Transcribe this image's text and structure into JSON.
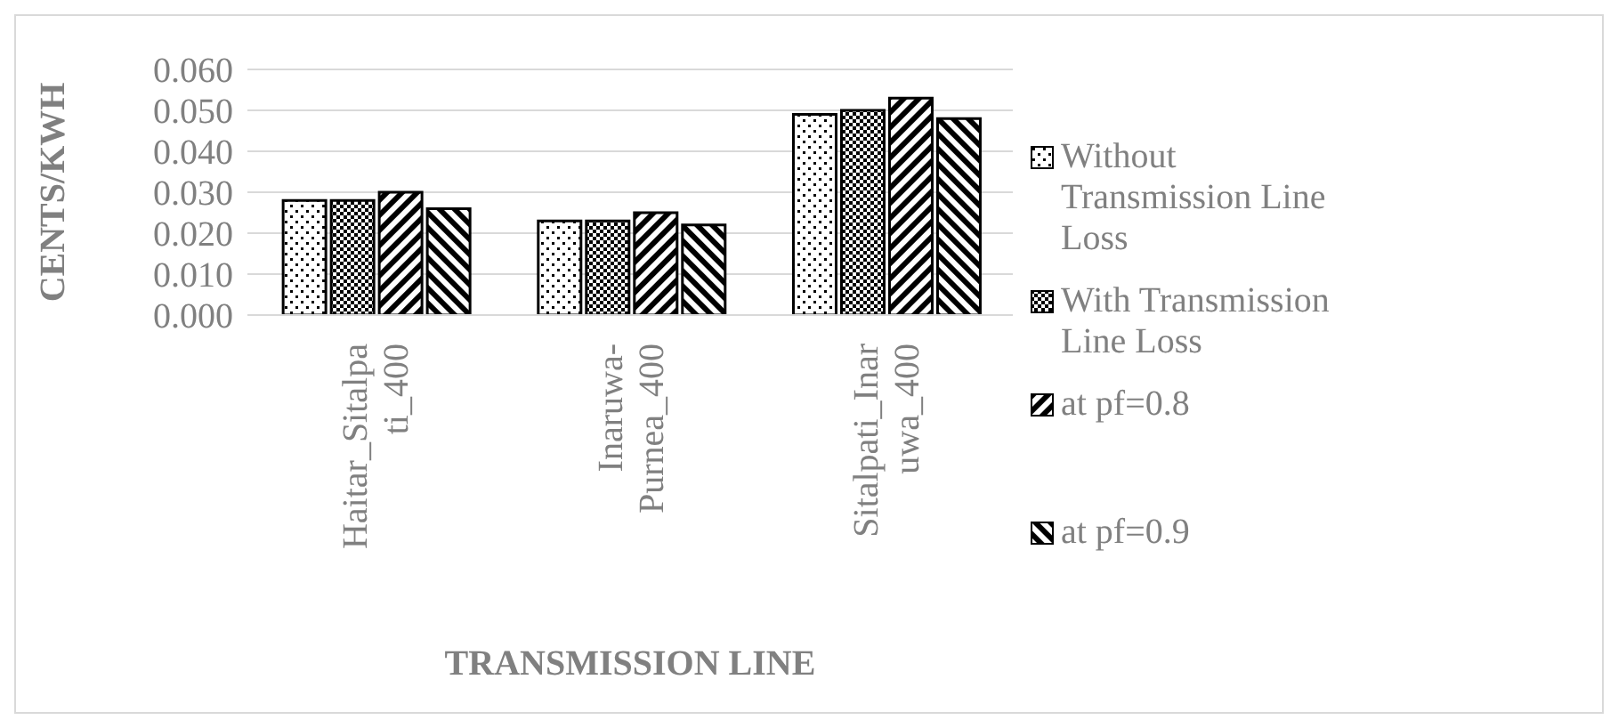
{
  "chart_data": {
    "type": "bar",
    "ylabel": "CENTS/KWH",
    "xlabel": "TRANSMISSION LINE",
    "categories": [
      "Haitar_Sitalpati_400",
      "Inaruwa-Purnea_400",
      "Sitalpati_Inaruwa_400"
    ],
    "series": [
      {
        "name": "Without Transmission Line Loss",
        "color": "#000000",
        "values": [
          0.028,
          0.023,
          0.049
        ]
      },
      {
        "name": "With Transmission Line Loss",
        "color": "#000000",
        "values": [
          0.028,
          0.023,
          0.05
        ]
      },
      {
        "name": "at pf=0.8",
        "color": "#000000",
        "values": [
          0.03,
          0.025,
          0.053
        ]
      },
      {
        "name": "at pf=0.9",
        "color": "#000000",
        "values": [
          0.026,
          0.022,
          0.048
        ]
      }
    ],
    "ylim": [
      0,
      0.06
    ],
    "yticks": [
      {
        "value": 0,
        "label": "0.000"
      },
      {
        "value": 0.01,
        "label": "0.010"
      },
      {
        "value": 0.02,
        "label": "0.020"
      },
      {
        "value": 0.03,
        "label": "0.030"
      },
      {
        "value": 0.04,
        "label": "0.040"
      },
      {
        "value": 0.05,
        "label": "0.050"
      },
      {
        "value": 0.06,
        "label": "0.060"
      }
    ],
    "grid": "y",
    "legend": "right"
  }
}
